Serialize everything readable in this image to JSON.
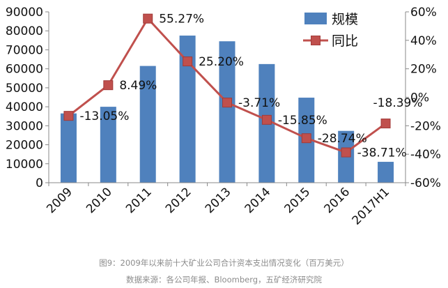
{
  "chart_data": {
    "type": "bar+line",
    "categories": [
      "2009",
      "2010",
      "2011",
      "2012",
      "2013",
      "2014",
      "2015",
      "2016",
      "2017H1"
    ],
    "series": [
      {
        "name": "规模",
        "type": "bar",
        "axis": "left",
        "color": "#4f81bd",
        "values": [
          36500,
          40000,
          61500,
          77500,
          74500,
          62500,
          44800,
          27300,
          11000
        ]
      },
      {
        "name": "同比",
        "type": "line",
        "axis": "right",
        "color": "#c0504d",
        "values": [
          -13.05,
          8.49,
          55.27,
          25.2,
          -3.71,
          -15.85,
          -28.74,
          -38.71,
          -18.39
        ],
        "labels": [
          "-13.05%",
          "8.49%",
          "55.27%",
          "25.20%",
          "-3.71%",
          "-15.85%",
          "-28.74%",
          "-38.71%",
          "-18.39%"
        ]
      }
    ],
    "left_axis": {
      "min": 0,
      "max": 90000,
      "step": 10000,
      "ticks": [
        "0",
        "10000",
        "20000",
        "30000",
        "40000",
        "50000",
        "60000",
        "70000",
        "80000",
        "90000"
      ]
    },
    "right_axis": {
      "min": -60,
      "max": 60,
      "step": 20,
      "ticks": [
        "-60%",
        "-40%",
        "-20%",
        "0%",
        "20%",
        "40%",
        "60%"
      ]
    },
    "legend": {
      "placement": "top-right",
      "items": [
        "规模",
        "同比"
      ]
    },
    "grid": false
  },
  "captions": {
    "title": "图9：2009年以来前十大矿业公司合计资本支出情况变化（百万美元）",
    "source": "数据来源：各公司年报、Bloomberg，五矿经济研究院"
  }
}
